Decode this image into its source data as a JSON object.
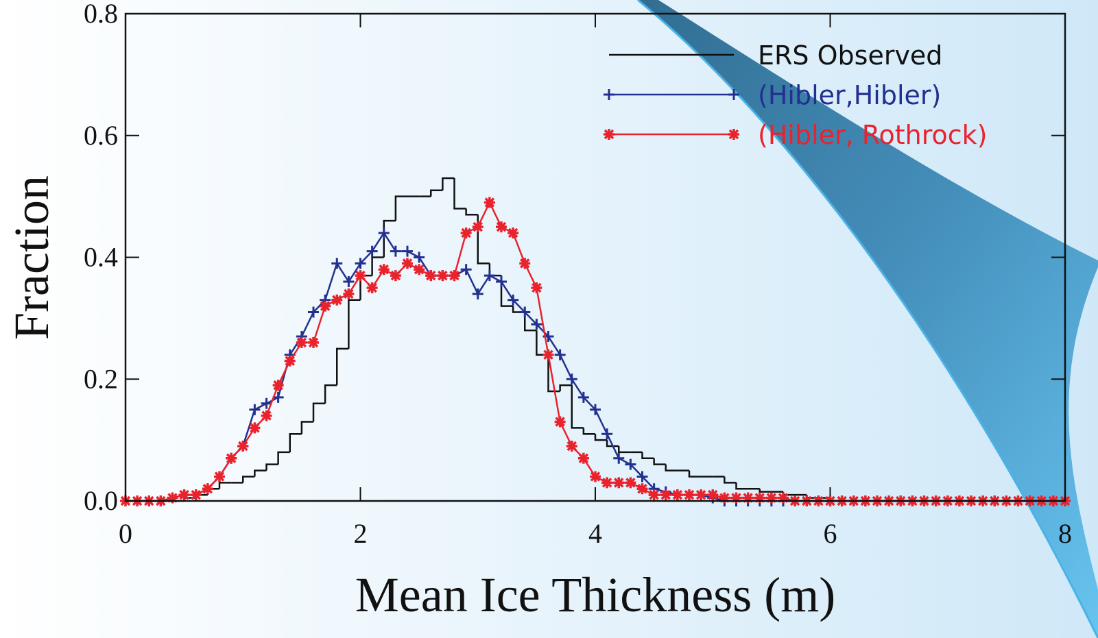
{
  "chart_data": {
    "type": "line",
    "xlabel": "Mean Ice Thickness (m)",
    "ylabel": "Fraction",
    "xlim": [
      0,
      8
    ],
    "ylim": [
      0,
      0.8
    ],
    "xticks": [
      0,
      2,
      4,
      6,
      8
    ],
    "yticks": [
      {
        "value": 0,
        "label": "0.0"
      },
      0.2,
      0.4,
      0.6,
      0.8
    ],
    "legend": "upper right",
    "x": [
      0,
      0.1,
      0.2,
      0.3,
      0.4,
      0.5,
      0.6,
      0.7,
      0.8,
      0.9,
      1,
      1.1,
      1.2,
      1.3,
      1.4,
      1.5,
      1.6,
      1.7,
      1.8,
      1.9,
      2,
      2.1,
      2.2,
      2.3,
      2.4,
      2.5,
      2.6,
      2.7,
      2.8,
      2.9,
      3,
      3.1,
      3.2,
      3.3,
      3.4,
      3.5,
      3.6,
      3.7,
      3.8,
      3.9,
      4,
      4.1,
      4.2,
      4.3,
      4.4,
      4.5,
      4.6,
      4.7,
      4.8,
      4.9,
      5,
      5.1,
      5.2,
      5.3,
      5.4,
      5.5,
      5.6,
      5.7,
      5.8,
      5.9,
      6,
      6.1,
      6.2,
      6.3,
      6.4,
      6.5,
      6.6,
      6.7,
      6.8,
      6.9,
      7,
      7.1,
      7.2,
      7.3,
      7.4,
      7.5,
      7.6,
      7.7,
      7.8,
      7.9,
      8
    ],
    "series": [
      {
        "name": "ERS Observed",
        "color": "#111111",
        "drawstyle": "steps-post",
        "marker": "none",
        "values": [
          0,
          0,
          0,
          0,
          0,
          0.005,
          0.01,
          0.02,
          0.03,
          0.03,
          0.04,
          0.05,
          0.06,
          0.08,
          0.11,
          0.13,
          0.16,
          0.19,
          0.25,
          0.33,
          0.37,
          0.4,
          0.46,
          0.5,
          0.5,
          0.5,
          0.51,
          0.53,
          0.48,
          0.47,
          0.39,
          0.37,
          0.32,
          0.31,
          0.28,
          0.24,
          0.18,
          0.19,
          0.12,
          0.11,
          0.1,
          0.09,
          0.08,
          0.08,
          0.07,
          0.06,
          0.05,
          0.05,
          0.04,
          0.04,
          0.04,
          0.03,
          0.02,
          0.02,
          0.015,
          0.015,
          0.01,
          0.01,
          0.005,
          0.005,
          0,
          0,
          0,
          0,
          0,
          0,
          0,
          0,
          0,
          0,
          0,
          0,
          0,
          0,
          0,
          0,
          0,
          0,
          0,
          0,
          0
        ]
      },
      {
        "name": "(Hibler,Hibler)",
        "color": "#22308f",
        "drawstyle": "default",
        "marker": "plus",
        "values": [
          0,
          0,
          0,
          0,
          0.005,
          0.01,
          0.01,
          0.02,
          0.04,
          0.07,
          0.09,
          0.15,
          0.16,
          0.17,
          0.24,
          0.27,
          0.31,
          0.33,
          0.39,
          0.36,
          0.39,
          0.41,
          0.44,
          0.41,
          0.41,
          0.4,
          0.37,
          0.37,
          0.37,
          0.38,
          0.34,
          0.37,
          0.36,
          0.33,
          0.31,
          0.29,
          0.27,
          0.24,
          0.2,
          0.17,
          0.15,
          0.11,
          0.07,
          0.06,
          0.04,
          0.02,
          0.015,
          0.01,
          0.01,
          0.01,
          0.005,
          0,
          0,
          0,
          0,
          0,
          0,
          0,
          0,
          0,
          0,
          0,
          0,
          0,
          0,
          0,
          0,
          0,
          0,
          0,
          0,
          0,
          0,
          0,
          0,
          0,
          0,
          0,
          0,
          0,
          0
        ]
      },
      {
        "name": "(Hibler, Rothrock)",
        "color": "#e8232d",
        "drawstyle": "default",
        "marker": "asterisk",
        "values": [
          0,
          0,
          0,
          0,
          0.005,
          0.01,
          0.01,
          0.02,
          0.04,
          0.07,
          0.09,
          0.12,
          0.14,
          0.19,
          0.23,
          0.26,
          0.26,
          0.32,
          0.33,
          0.34,
          0.37,
          0.35,
          0.38,
          0.37,
          0.39,
          0.38,
          0.37,
          0.37,
          0.37,
          0.44,
          0.45,
          0.49,
          0.45,
          0.44,
          0.39,
          0.35,
          0.24,
          0.13,
          0.09,
          0.07,
          0.04,
          0.03,
          0.03,
          0.03,
          0.02,
          0.01,
          0.01,
          0.01,
          0.01,
          0.01,
          0.01,
          0.005,
          0.005,
          0.005,
          0.005,
          0.005,
          0.005,
          0,
          0,
          0,
          0,
          0,
          0,
          0,
          0,
          0,
          0,
          0,
          0,
          0,
          0,
          0,
          0,
          0,
          0,
          0,
          0,
          0,
          0,
          0,
          0
        ]
      }
    ]
  }
}
